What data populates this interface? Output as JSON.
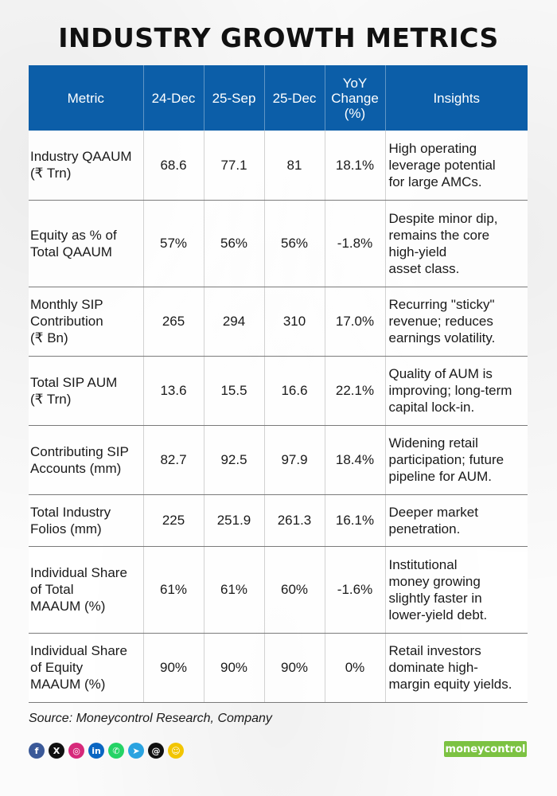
{
  "title": "INDUSTRY GROWTH METRICS",
  "table": {
    "headers": [
      "Metric",
      "24-Dec",
      "25-Sep",
      "25-Dec",
      "YoY\nChange\n(%)",
      "Insights"
    ],
    "rows": [
      [
        "Industry QAAUM\n(₹ Trn)",
        "68.6",
        "77.1",
        "81",
        "18.1%",
        "High operating\nleverage potential\nfor large AMCs."
      ],
      [
        "Equity as % of\nTotal QAAUM",
        "57%",
        "56%",
        "56%",
        "-1.8%",
        "Despite minor dip,\nremains the core\nhigh-yield\nasset class."
      ],
      [
        "Monthly SIP\nContribution\n(₹ Bn)",
        "265",
        "294",
        "310",
        "17.0%",
        "Recurring \"sticky\"\nrevenue; reduces\nearnings volatility."
      ],
      [
        "Total SIP AUM\n(₹ Trn)",
        "13.6",
        "15.5",
        "16.6",
        "22.1%",
        "Quality of AUM is\nimproving; long-term\ncapital lock-in."
      ],
      [
        "Contributing SIP\nAccounts (mm)",
        "82.7",
        "92.5",
        "97.9",
        "18.4%",
        "Widening retail\nparticipation; future\npipeline for AUM."
      ],
      [
        "Total Industry\nFolios (mm)",
        "225",
        "251.9",
        "261.3",
        "16.1%",
        "Deeper market\npenetration."
      ],
      [
        "Individual Share\nof Total\nMAAUM (%)",
        "61%",
        "61%",
        "60%",
        "-1.6%",
        "Institutional\nmoney growing\nslightly faster in\nlower-yield debt."
      ],
      [
        "Individual Share\nof Equity\nMAAUM (%)",
        "90%",
        "90%",
        "90%",
        "0%",
        "Retail investors\ndominate high-\nmargin equity yields."
      ]
    ]
  },
  "source": "Source: Moneycontrol Research, Company",
  "social_icons": [
    {
      "name": "facebook-icon",
      "glyph": "f",
      "color": "#3b5998"
    },
    {
      "name": "x-icon",
      "glyph": "X",
      "color": "#111111"
    },
    {
      "name": "instagram-icon",
      "glyph": "◎",
      "color": "#d6297a"
    },
    {
      "name": "linkedin-icon",
      "glyph": "in",
      "color": "#0a66c2"
    },
    {
      "name": "whatsapp-icon",
      "glyph": "✆",
      "color": "#25d366"
    },
    {
      "name": "telegram-icon",
      "glyph": "➤",
      "color": "#2aa3e0"
    },
    {
      "name": "threads-icon",
      "glyph": "@",
      "color": "#111111"
    },
    {
      "name": "snapchat-icon",
      "glyph": "☺",
      "color": "#f2c500"
    }
  ],
  "logo": "moneycontrol",
  "colors": {
    "header_bg": "#0c5ea8",
    "logo_bg": "#7cc242"
  }
}
